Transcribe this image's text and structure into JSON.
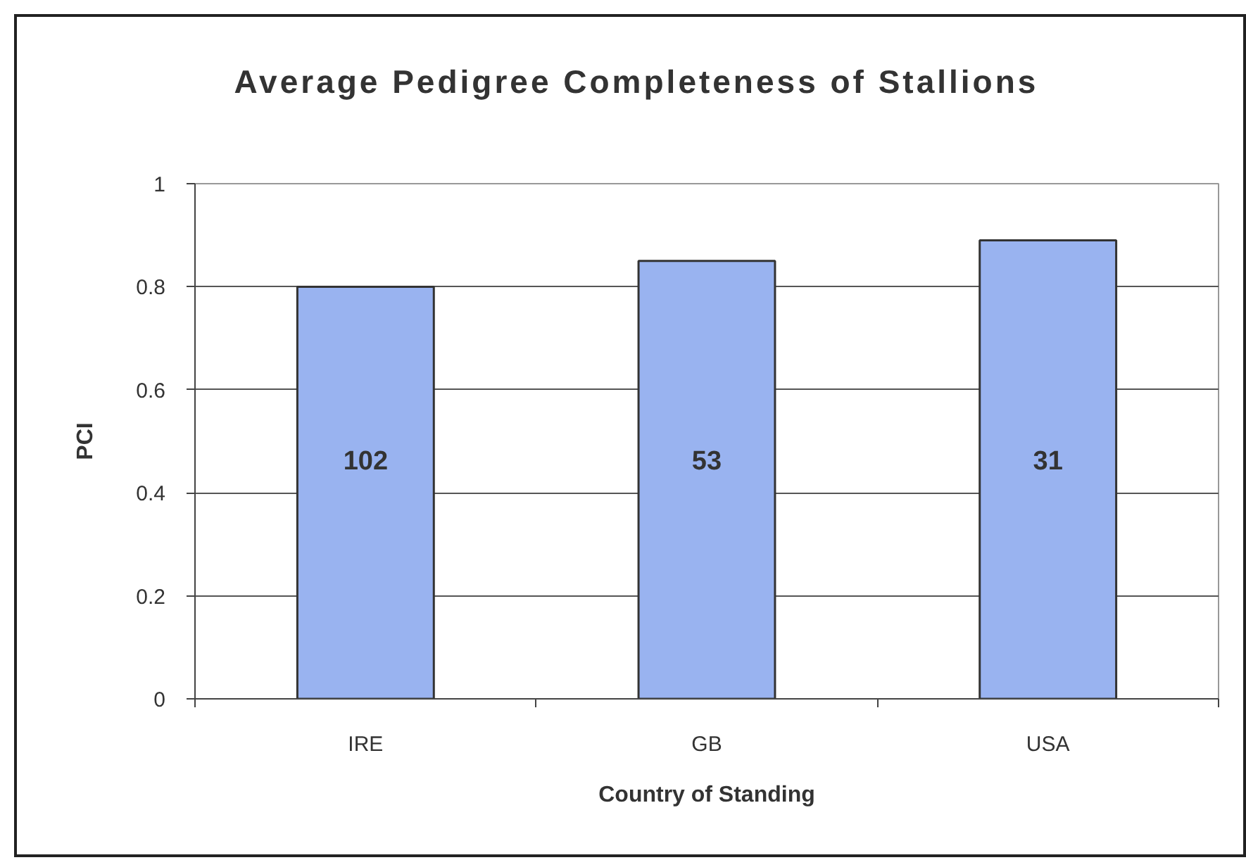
{
  "chart_data": {
    "type": "bar",
    "title": "Average Pedigree Completeness of Stallions",
    "xlabel": "Country of Standing",
    "ylabel": "PCI",
    "categories": [
      "IRE",
      "GB",
      "USA"
    ],
    "values": [
      0.8,
      0.85,
      0.89
    ],
    "color": "#99b3f0",
    "annotations": [
      "102",
      "53",
      "31"
    ],
    "ylim": [
      0,
      1
    ],
    "yticks": [
      0,
      0.2,
      0.4,
      0.6,
      0.8,
      1
    ],
    "grid": "y"
  }
}
